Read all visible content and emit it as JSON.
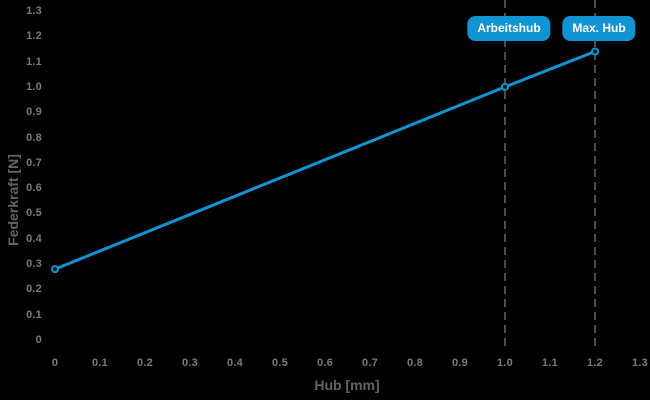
{
  "chart_data": {
    "type": "line",
    "title": "",
    "xlabel": "Hub [mm]",
    "ylabel": "Federkraft [N]",
    "xlim": [
      0,
      1.3
    ],
    "ylim": [
      0,
      1.3
    ],
    "grid": false,
    "legend": false,
    "x_ticks": [
      "0",
      "0.1",
      "0.2",
      "0.3",
      "0.4",
      "0.5",
      "0.6",
      "0.7",
      "0.8",
      "0.9",
      "1.0",
      "1.1",
      "1.2",
      "1.3"
    ],
    "y_ticks": [
      "0",
      "0.1",
      "0.2",
      "0.3",
      "0.4",
      "0.5",
      "0.6",
      "0.7",
      "0.8",
      "0.9",
      "1.0",
      "1.1",
      "1.2",
      "1.3"
    ],
    "series": [
      {
        "name": "Federkraft",
        "points": [
          [
            0,
            0.28
          ],
          [
            1.0,
            1.0
          ],
          [
            1.2,
            1.14
          ]
        ],
        "marker": "circle"
      }
    ],
    "annotations": [
      {
        "label": "Arbeitshub",
        "x": 1.0
      },
      {
        "label": "Max. Hub",
        "x": 1.2
      }
    ],
    "colors": {
      "background": "#000000",
      "accent": "#1094d4",
      "badge_text": "#ffffff",
      "dashed_line": "#4d4d4d",
      "marker_fill": "#001018",
      "tick_label": "#7a7a7a",
      "axis_title": "#646464"
    }
  }
}
